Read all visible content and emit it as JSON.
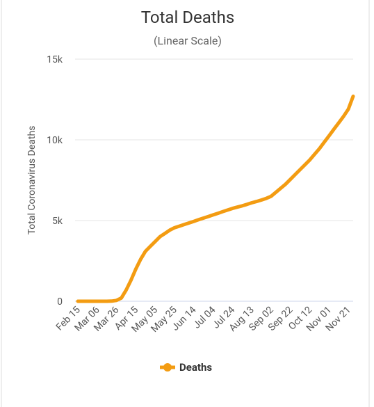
{
  "chart_data": {
    "type": "line",
    "title": "Total Deaths",
    "subtitle": "(Linear Scale)",
    "y_label": "Total Coronavirus Deaths",
    "categories": [
      "Feb 15",
      null,
      null,
      null,
      "Mar 06",
      null,
      null,
      null,
      "Mar 26",
      null,
      null,
      null,
      "Apr 15",
      null,
      null,
      null,
      "May 05",
      null,
      null,
      null,
      "May 25",
      null,
      null,
      null,
      "Jun 14",
      null,
      null,
      null,
      "Jul 04",
      null,
      null,
      null,
      "Jul 24",
      null,
      null,
      null,
      "Aug 13",
      null,
      null,
      null,
      "Sep 02",
      null,
      null,
      null,
      "Sep 22",
      null,
      null,
      null,
      "Oct 12",
      null,
      null,
      null,
      "Nov 01",
      null,
      null,
      null,
      "Nov 21",
      null
    ],
    "series": [
      {
        "name": "Deaths",
        "color": "#f39c12",
        "values": [
          0,
          0,
          0,
          0,
          0,
          0,
          0,
          10,
          50,
          200,
          700,
          1300,
          2000,
          2600,
          3100,
          3400,
          3700,
          4000,
          4200,
          4400,
          4550,
          4650,
          4750,
          4850,
          4950,
          5050,
          5150,
          5250,
          5350,
          5450,
          5550,
          5650,
          5750,
          5830,
          5910,
          6000,
          6100,
          6180,
          6270,
          6370,
          6500,
          6750,
          7000,
          7250,
          7550,
          7850,
          8150,
          8450,
          8750,
          9100,
          9450,
          9850,
          10250,
          10650,
          11050,
          11450,
          11900,
          12700
        ]
      }
    ],
    "ylim": [
      0,
      15000
    ],
    "yticks": [
      0,
      {
        "value": 5000,
        "label": "5k"
      },
      {
        "value": 10000,
        "label": "10k"
      },
      {
        "value": 15000,
        "label": "15k"
      }
    ],
    "grid": true,
    "legend": "bottom"
  }
}
